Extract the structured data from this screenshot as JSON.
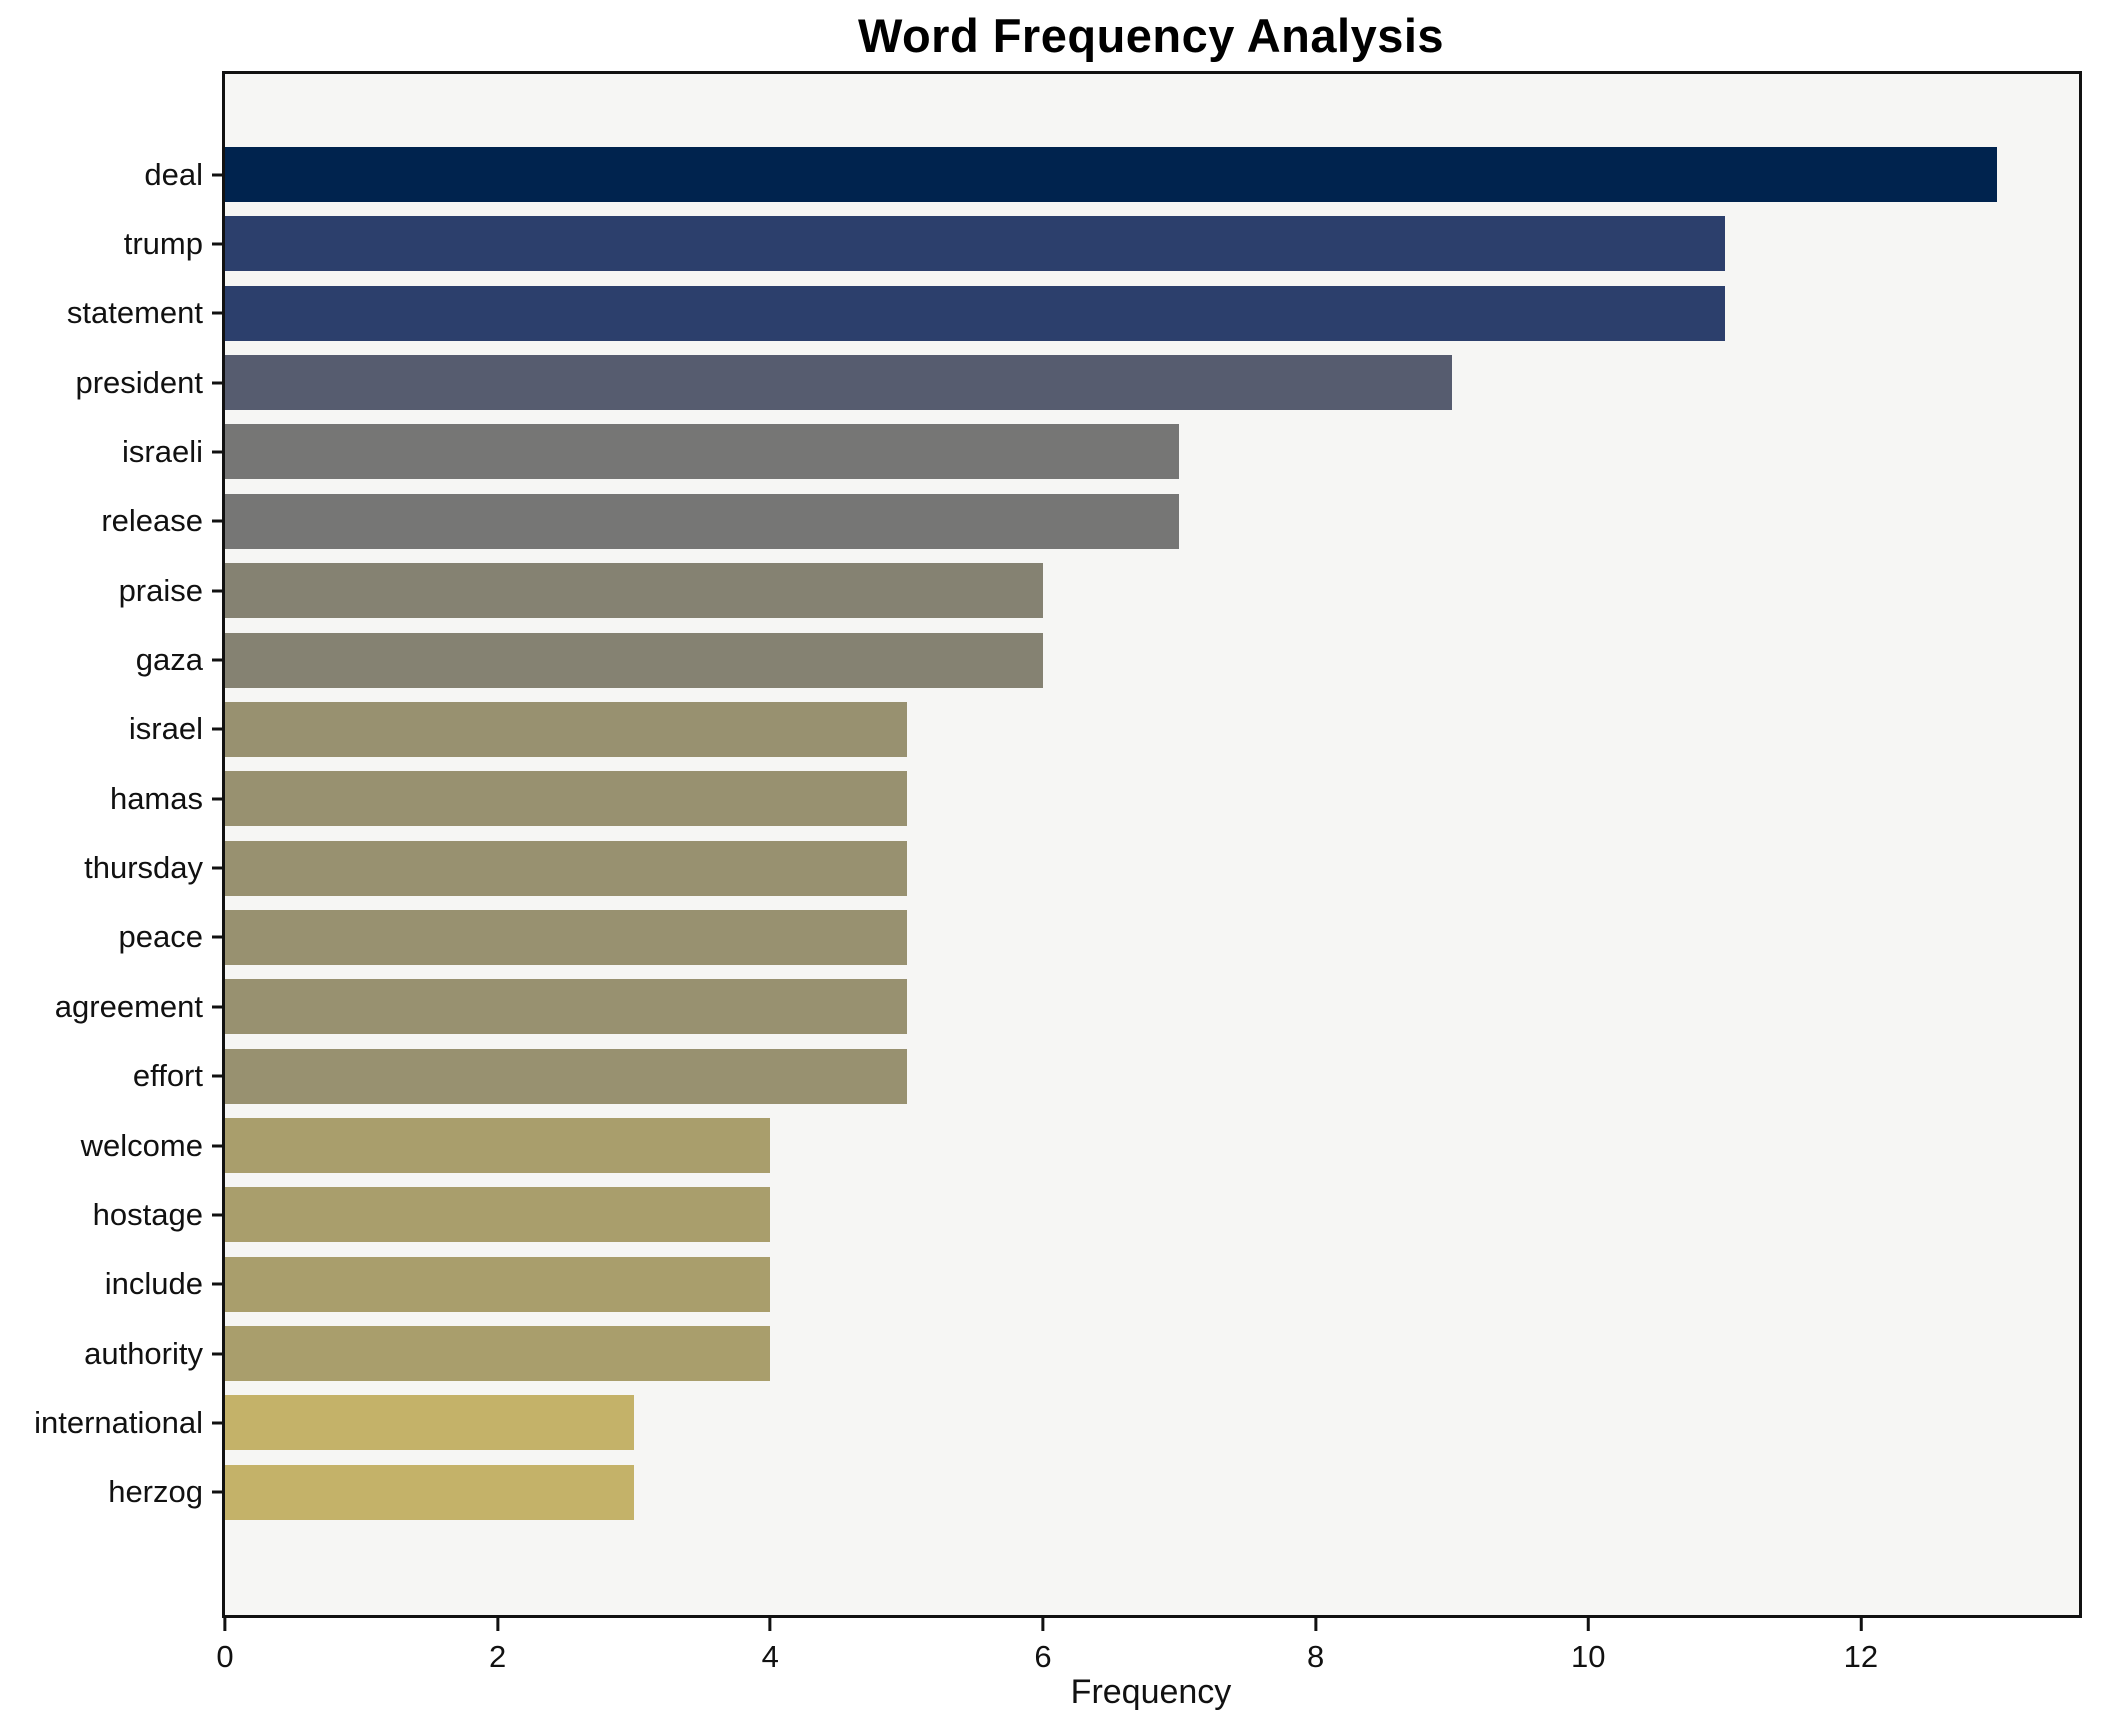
{
  "chart_data": {
    "type": "bar",
    "orientation": "horizontal",
    "title": "Word Frequency Analysis",
    "xlabel": "Frequency",
    "ylabel": "",
    "categories": [
      "deal",
      "trump",
      "statement",
      "president",
      "israeli",
      "release",
      "praise",
      "gaza",
      "israel",
      "hamas",
      "thursday",
      "peace",
      "agreement",
      "effort",
      "welcome",
      "hostage",
      "include",
      "authority",
      "international",
      "herzog"
    ],
    "values": [
      13,
      11,
      11,
      9,
      7,
      7,
      6,
      6,
      5,
      5,
      5,
      5,
      5,
      5,
      4,
      4,
      4,
      4,
      3,
      3
    ],
    "bar_colors": [
      "#00234e",
      "#2c3f6c",
      "#2c3f6c",
      "#565c6f",
      "#767675",
      "#767675",
      "#858272",
      "#858272",
      "#989170",
      "#989170",
      "#989170",
      "#989170",
      "#989170",
      "#989170",
      "#a99e6c",
      "#a99e6c",
      "#a99e6c",
      "#a99e6c",
      "#c4b269",
      "#c4b269"
    ],
    "xlim": [
      0,
      13.6
    ],
    "x_ticks": [
      0,
      2,
      4,
      6,
      8,
      10,
      12
    ],
    "grid": false,
    "legend": null,
    "plot_background": "#f6f6f4",
    "figure_background": "#ffffff",
    "spine_color": "#111111"
  }
}
